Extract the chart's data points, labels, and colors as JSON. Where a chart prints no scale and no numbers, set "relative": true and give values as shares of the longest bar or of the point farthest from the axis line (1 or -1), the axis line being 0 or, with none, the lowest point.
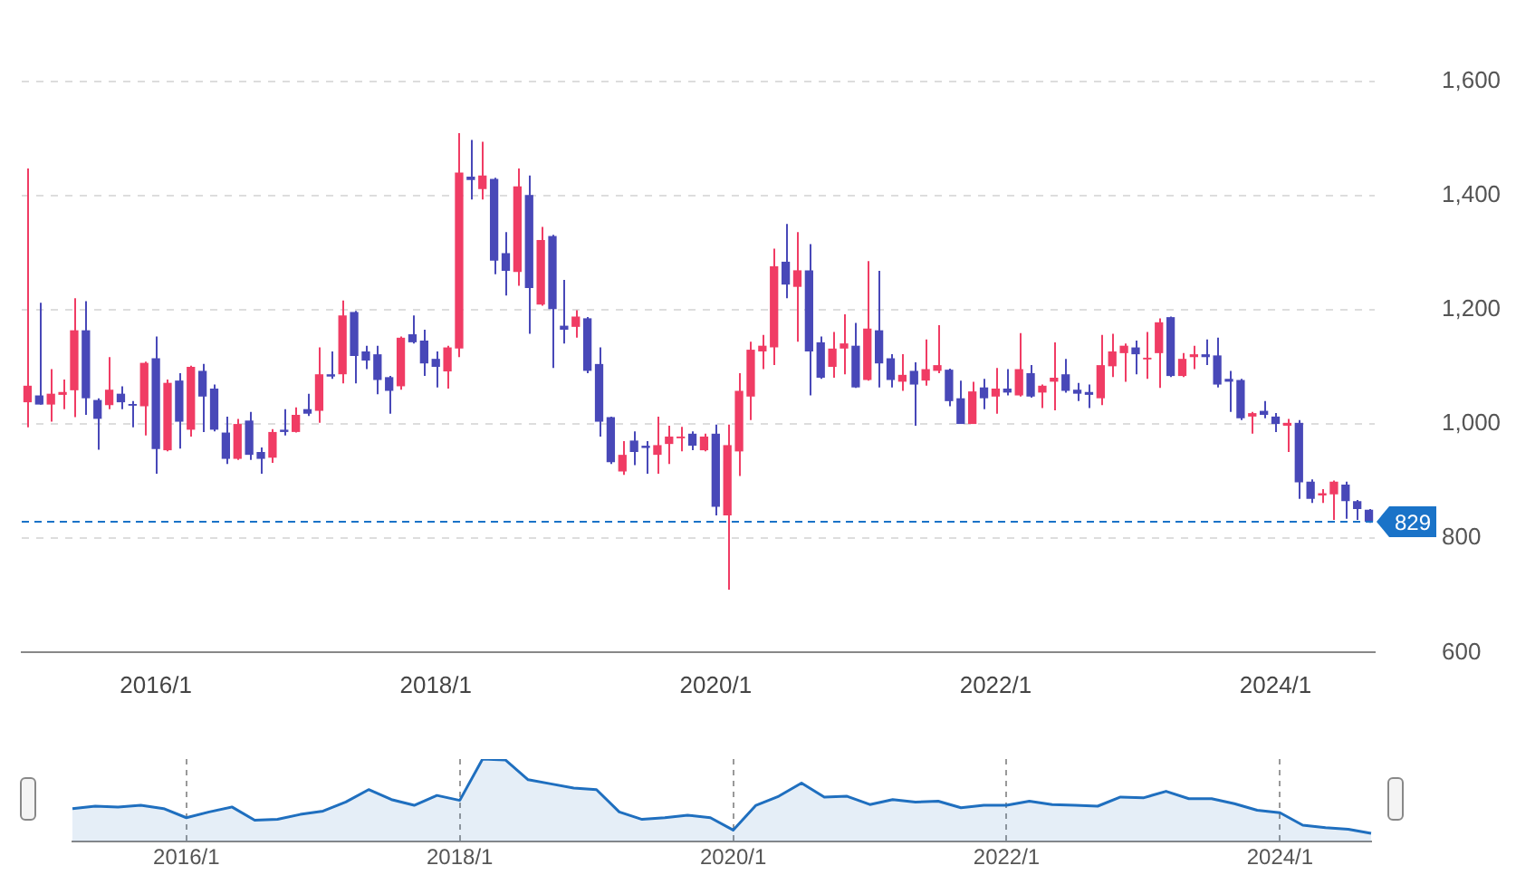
{
  "chart_data": [
    {
      "type": "candlestick",
      "categories": [
        null,
        null,
        null,
        null,
        null,
        null,
        null,
        null,
        null,
        null,
        null,
        "2016/1",
        null,
        null,
        null,
        null,
        null,
        null,
        null,
        null,
        null,
        null,
        null,
        null,
        null,
        null,
        null,
        null,
        null,
        null,
        null,
        null,
        null,
        null,
        null,
        "2018/1",
        null,
        null,
        null,
        null,
        null,
        null,
        null,
        null,
        null,
        null,
        null,
        null,
        null,
        null,
        null,
        null,
        null,
        null,
        null,
        null,
        null,
        null,
        null,
        "2020/1",
        null,
        null,
        null,
        null,
        null,
        null,
        null,
        null,
        null,
        null,
        null,
        null,
        null,
        null,
        null,
        null,
        null,
        null,
        null,
        null,
        null,
        null,
        null,
        "2022/1",
        null,
        null,
        null,
        null,
        null,
        null,
        null,
        null,
        null,
        null,
        null,
        null,
        null,
        null,
        null,
        null,
        null,
        null,
        null,
        null,
        null,
        null,
        null,
        "2024/1",
        null,
        null,
        null,
        null,
        null,
        null,
        null,
        null
      ],
      "ohlc": [
        [
          1038,
          1447,
          994,
          1067
        ],
        [
          1050,
          1212,
          1034,
          1034
        ],
        [
          1034,
          1096,
          1004,
          1053
        ],
        [
          1051,
          1078,
          1026,
          1056
        ],
        [
          1059,
          1220,
          1012,
          1164
        ],
        [
          1164,
          1215,
          1016,
          1045
        ],
        [
          1042,
          1045,
          955,
          1009
        ],
        [
          1033,
          1117,
          1026,
          1060
        ],
        [
          1053,
          1066,
          1026,
          1038
        ],
        [
          1035,
          1040,
          994,
          1032
        ],
        [
          1031,
          1109,
          980,
          1107
        ],
        [
          1115,
          1153,
          913,
          956
        ],
        [
          954,
          1078,
          952,
          1072
        ],
        [
          1076,
          1089,
          957,
          1004
        ],
        [
          990,
          1102,
          978,
          1100
        ],
        [
          1093,
          1105,
          986,
          1048
        ],
        [
          1062,
          1069,
          987,
          990
        ],
        [
          985,
          1013,
          930,
          939
        ],
        [
          939,
          1009,
          937,
          1000
        ],
        [
          1006,
          1021,
          937,
          946
        ],
        [
          951,
          959,
          913,
          939
        ],
        [
          941,
          991,
          932,
          986
        ],
        [
          990,
          1026,
          980,
          986
        ],
        [
          986,
          1029,
          985,
          1016
        ],
        [
          1026,
          1053,
          1014,
          1018
        ],
        [
          1023,
          1134,
          1002,
          1087
        ],
        [
          1087,
          1127,
          1079,
          1083
        ],
        [
          1087,
          1216,
          1071,
          1190
        ],
        [
          1196,
          1198,
          1071,
          1119
        ],
        [
          1127,
          1137,
          1096,
          1111
        ],
        [
          1122,
          1137,
          1052,
          1077
        ],
        [
          1082,
          1084,
          1018,
          1058
        ],
        [
          1066,
          1153,
          1060,
          1151
        ],
        [
          1157,
          1190,
          1141,
          1143
        ],
        [
          1146,
          1165,
          1084,
          1106
        ],
        [
          1114,
          1127,
          1064,
          1100
        ],
        [
          1092,
          1137,
          1062,
          1134
        ],
        [
          1132,
          1509,
          1117,
          1440
        ],
        [
          1433,
          1497,
          1393,
          1427
        ],
        [
          1411,
          1494,
          1393,
          1435
        ],
        [
          1429,
          1431,
          1262,
          1286
        ],
        [
          1299,
          1336,
          1225,
          1268
        ],
        [
          1266,
          1447,
          1242,
          1416
        ],
        [
          1401,
          1435,
          1158,
          1238
        ],
        [
          1209,
          1345,
          1207,
          1322
        ],
        [
          1329,
          1331,
          1098,
          1201
        ],
        [
          1172,
          1252,
          1141,
          1165
        ],
        [
          1170,
          1199,
          1151,
          1188
        ],
        [
          1185,
          1187,
          1089,
          1093
        ],
        [
          1105,
          1134,
          978,
          1004
        ],
        [
          1012,
          1013,
          930,
          933
        ],
        [
          917,
          970,
          911,
          946
        ],
        [
          971,
          987,
          928,
          951
        ],
        [
          962,
          970,
          913,
          958
        ],
        [
          946,
          1013,
          913,
          963
        ],
        [
          965,
          997,
          930,
          978
        ],
        [
          975,
          995,
          952,
          978
        ],
        [
          983,
          987,
          954,
          962
        ],
        [
          954,
          983,
          952,
          978
        ],
        [
          983,
          999,
          840,
          855
        ],
        [
          840,
          999,
          710,
          963
        ],
        [
          952,
          1089,
          909,
          1058
        ],
        [
          1048,
          1144,
          1007,
          1130
        ],
        [
          1127,
          1156,
          1096,
          1137
        ],
        [
          1134,
          1307,
          1103,
          1276
        ],
        [
          1284,
          1350,
          1220,
          1244
        ],
        [
          1240,
          1336,
          1144,
          1269
        ],
        [
          1269,
          1315,
          1050,
          1127
        ],
        [
          1143,
          1153,
          1079,
          1081
        ],
        [
          1100,
          1161,
          1081,
          1132
        ],
        [
          1132,
          1192,
          1087,
          1141
        ],
        [
          1137,
          1177,
          1063,
          1064
        ],
        [
          1077,
          1285,
          1076,
          1167
        ],
        [
          1164,
          1268,
          1064,
          1106
        ],
        [
          1115,
          1122,
          1064,
          1077
        ],
        [
          1074,
          1122,
          1058,
          1086
        ],
        [
          1093,
          1108,
          997,
          1069
        ],
        [
          1076,
          1148,
          1067,
          1096
        ],
        [
          1093,
          1173,
          1089,
          1103
        ],
        [
          1095,
          1097,
          1031,
          1040
        ],
        [
          1045,
          1076,
          1000,
          1000
        ],
        [
          1000,
          1074,
          1000,
          1057
        ],
        [
          1064,
          1079,
          1026,
          1045
        ],
        [
          1048,
          1098,
          1018,
          1062
        ],
        [
          1062,
          1096,
          1050,
          1055
        ],
        [
          1050,
          1159,
          1048,
          1096
        ],
        [
          1089,
          1103,
          1046,
          1048
        ],
        [
          1055,
          1069,
          1028,
          1067
        ],
        [
          1074,
          1143,
          1024,
          1081
        ],
        [
          1087,
          1114,
          1055,
          1058
        ],
        [
          1060,
          1072,
          1040,
          1053
        ],
        [
          1056,
          1069,
          1028,
          1051
        ],
        [
          1045,
          1156,
          1033,
          1103
        ],
        [
          1101,
          1158,
          1082,
          1127
        ],
        [
          1124,
          1141,
          1074,
          1137
        ],
        [
          1134,
          1146,
          1087,
          1122
        ],
        [
          1113,
          1161,
          1079,
          1116
        ],
        [
          1124,
          1185,
          1063,
          1178
        ],
        [
          1187,
          1188,
          1082,
          1084
        ],
        [
          1084,
          1124,
          1082,
          1114
        ],
        [
          1117,
          1137,
          1096,
          1122
        ],
        [
          1122,
          1148,
          1103,
          1117
        ],
        [
          1120,
          1151,
          1064,
          1069
        ],
        [
          1079,
          1093,
          1021,
          1074
        ],
        [
          1077,
          1079,
          1007,
          1010
        ],
        [
          1013,
          1021,
          983,
          1019
        ],
        [
          1023,
          1040,
          1010,
          1016
        ],
        [
          1013,
          1019,
          986,
          1000
        ],
        [
          997,
          1009,
          951,
          1002
        ],
        [
          1002,
          1007,
          869,
          898
        ],
        [
          899,
          903,
          862,
          869
        ],
        [
          875,
          886,
          862,
          879
        ],
        [
          877,
          901,
          832,
          899
        ],
        [
          894,
          899,
          834,
          865
        ],
        [
          865,
          867,
          832,
          851
        ],
        [
          850,
          851,
          827,
          829
        ]
      ],
      "colors": [
        "#f03c64",
        "#4848b8",
        "#f03c64",
        "#f03c64",
        "#f03c64",
        "#4848b8",
        "#4848b8",
        "#f03c64",
        "#4848b8",
        "#4848b8",
        "#f03c64",
        "#4848b8",
        "#f03c64",
        "#4848b8",
        "#f03c64",
        "#4848b8",
        "#4848b8",
        "#4848b8",
        "#f03c64",
        "#4848b8",
        "#4848b8",
        "#f03c64",
        "#4848b8",
        "#f03c64",
        "#4848b8",
        "#f03c64",
        "#4848b8",
        "#f03c64",
        "#4848b8",
        "#4848b8",
        "#4848b8",
        "#4848b8",
        "#f03c64",
        "#4848b8",
        "#4848b8",
        "#4848b8",
        "#f03c64",
        "#f03c64",
        "#4848b8",
        "#f03c64",
        "#4848b8",
        "#4848b8",
        "#f03c64",
        "#4848b8",
        "#f03c64",
        "#4848b8",
        "#4848b8",
        "#f03c64",
        "#4848b8",
        "#4848b8",
        "#4848b8",
        "#f03c64",
        "#4848b8",
        "#4848b8",
        "#f03c64",
        "#f03c64",
        "#f03c64",
        "#4848b8",
        "#f03c64",
        "#4848b8",
        "#f03c64",
        "#f03c64",
        "#f03c64",
        "#f03c64",
        "#f03c64",
        "#4848b8",
        "#f03c64",
        "#4848b8",
        "#4848b8",
        "#f03c64",
        "#f03c64",
        "#4848b8",
        "#f03c64",
        "#4848b8",
        "#4848b8",
        "#f03c64",
        "#4848b8",
        "#f03c64",
        "#f03c64",
        "#4848b8",
        "#4848b8",
        "#f03c64",
        "#4848b8",
        "#f03c64",
        "#4848b8",
        "#f03c64",
        "#4848b8",
        "#f03c64",
        "#f03c64",
        "#4848b8",
        "#4848b8",
        "#4848b8",
        "#f03c64",
        "#f03c64",
        "#f03c64",
        "#4848b8",
        "#f03c64",
        "#f03c64",
        "#4848b8",
        "#f03c64",
        "#f03c64",
        "#4848b8",
        "#4848b8",
        "#4848b8",
        "#4848b8",
        "#f03c64",
        "#4848b8",
        "#4848b8",
        "#f03c64",
        "#4848b8",
        "#4848b8",
        "#f03c64",
        "#f03c64",
        "#4848b8",
        "#4848b8",
        "#4848b8"
      ],
      "ylim": [
        600,
        1600
      ],
      "yticks": [
        {
          "value": 600,
          "label": "600"
        },
        {
          "value": 800,
          "label": "800"
        },
        {
          "value": 1000,
          "label": "1,000"
        },
        {
          "value": 1200,
          "label": "1,200"
        },
        {
          "value": 1400,
          "label": "1,400"
        },
        {
          "value": 1600,
          "label": "1,600"
        }
      ],
      "grid": "y",
      "ref_lines": [
        {
          "axis": "y",
          "value": 829,
          "label": "829",
          "color": "#1a73c8",
          "line_style": "dashed"
        }
      ]
    },
    {
      "type": "area",
      "categories": [
        null,
        null,
        null,
        null,
        null,
        "2016/1",
        null,
        null,
        null,
        null,
        null,
        null,
        null,
        null,
        null,
        null,
        null,
        "2018/1",
        null,
        null,
        null,
        null,
        null,
        null,
        null,
        null,
        null,
        null,
        null,
        "2020/1",
        null,
        null,
        null,
        null,
        null,
        null,
        null,
        null,
        null,
        null,
        null,
        "2022/1",
        null,
        null,
        null,
        null,
        null,
        null,
        null,
        null,
        null,
        null,
        null,
        "2024/1",
        null,
        null,
        null,
        null
      ],
      "series": [
        {
          "color": "#1f6fbf",
          "values": [
            0.4,
            0.43,
            0.42,
            0.44,
            0.4,
            0.29,
            0.36,
            0.42,
            0.26,
            0.27,
            0.33,
            0.37,
            0.48,
            0.63,
            0.51,
            0.44,
            0.56,
            0.5,
            1.0,
            0.99,
            0.75,
            0.7,
            0.65,
            0.63,
            0.36,
            0.27,
            0.29,
            0.32,
            0.29,
            0.14,
            0.44,
            0.55,
            0.71,
            0.54,
            0.55,
            0.45,
            0.51,
            0.48,
            0.49,
            0.41,
            0.44,
            0.44,
            0.49,
            0.45,
            0.44,
            0.43,
            0.54,
            0.53,
            0.61,
            0.52,
            0.52,
            0.46,
            0.38,
            0.35,
            0.2,
            0.17,
            0.15,
            0.1
          ]
        }
      ],
      "relative": true,
      "grid": "x",
      "marker": "none"
    }
  ]
}
